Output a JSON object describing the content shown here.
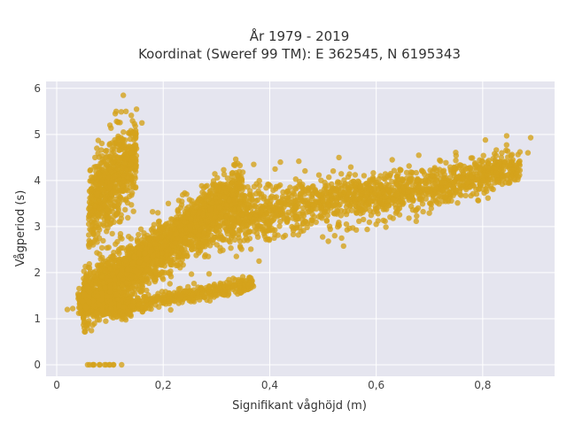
{
  "chart_data": {
    "type": "scatter",
    "title": "År 1979 - 2019",
    "subtitle": "Koordinat (Sweref 99 TM): E 362545, N 6195343",
    "xlabel": "Signifikant våghöjd (m)",
    "ylabel": "Vågperiod (s)",
    "xlim": [
      -0.02,
      0.935
    ],
    "ylim": [
      -0.25,
      6.15
    ],
    "x_ticks": [
      0,
      0.2,
      0.4,
      0.6,
      0.8
    ],
    "x_tick_labels": [
      "0",
      "0,2",
      "0,4",
      "0,6",
      "0,8"
    ],
    "y_ticks": [
      0,
      1,
      2,
      3,
      4,
      5,
      6
    ],
    "y_tick_labels": [
      "0",
      "1",
      "2",
      "3",
      "4",
      "5",
      "6"
    ],
    "grid": true,
    "colors": {
      "marker": "#d4a31c",
      "plot_bg": "#e5e5ef",
      "grid": "#ffffff"
    },
    "clusters": [
      {
        "name": "main",
        "count": 2600,
        "x_range": [
          0.05,
          0.87
        ],
        "y_at": [
          [
            0.05,
            1.45
          ],
          [
            0.15,
            2.1
          ],
          [
            0.3,
            3.1
          ],
          [
            0.5,
            3.55
          ],
          [
            0.7,
            3.85
          ],
          [
            0.87,
            4.3
          ]
        ],
        "spread": 0.35
      },
      {
        "name": "steep-upper",
        "count": 1100,
        "x_range": [
          0.08,
          0.35
        ],
        "y_at": [
          [
            0.08,
            1.6
          ],
          [
            0.35,
            3.9
          ]
        ],
        "spread": 0.25
      },
      {
        "name": "short-period",
        "count": 500,
        "x_range": [
          0.04,
          0.14
        ],
        "y_at": [
          [
            0.04,
            1.4
          ],
          [
            0.14,
            1.25
          ]
        ],
        "spread": 0.12
      },
      {
        "name": "low-band",
        "count": 450,
        "x_range": [
          0.1,
          0.37
        ],
        "y_at": [
          [
            0.1,
            1.2
          ],
          [
            0.37,
            1.75
          ]
        ],
        "spread": 0.08
      },
      {
        "name": "swell",
        "count": 700,
        "x_range": [
          0.06,
          0.15
        ],
        "y_at": [
          [
            0.06,
            3.4
          ],
          [
            0.15,
            4.6
          ]
        ],
        "spread": 0.45
      },
      {
        "name": "calm",
        "count": 8,
        "x_range": [
          0.06,
          0.12
        ],
        "y_at": [
          [
            0.06,
            0
          ],
          [
            0.12,
            0
          ]
        ],
        "spread": 0
      }
    ],
    "points": [
      {
        "x": 0.125,
        "y": 5.85
      },
      {
        "x": 0.11,
        "y": 5.45
      },
      {
        "x": 0.13,
        "y": 5.5
      },
      {
        "x": 0.16,
        "y": 5.25
      },
      {
        "x": 0.1,
        "y": 5.2
      },
      {
        "x": 0.14,
        "y": 4.6
      },
      {
        "x": 0.02,
        "y": 1.2
      },
      {
        "x": 0.03,
        "y": 1.22
      },
      {
        "x": 0.058,
        "y": 0
      },
      {
        "x": 0.07,
        "y": 0
      },
      {
        "x": 0.08,
        "y": 0
      },
      {
        "x": 0.09,
        "y": 0
      },
      {
        "x": 0.1,
        "y": 0
      },
      {
        "x": 0.122,
        "y": 0
      },
      {
        "x": 0.89,
        "y": 4.93
      },
      {
        "x": 0.885,
        "y": 4.6
      },
      {
        "x": 0.87,
        "y": 4.62
      },
      {
        "x": 0.845,
        "y": 4.97
      },
      {
        "x": 0.805,
        "y": 4.88
      },
      {
        "x": 0.835,
        "y": 4.5
      },
      {
        "x": 0.42,
        "y": 4.4
      },
      {
        "x": 0.41,
        "y": 4.25
      },
      {
        "x": 0.37,
        "y": 4.35
      },
      {
        "x": 0.53,
        "y": 4.5
      },
      {
        "x": 0.63,
        "y": 4.45
      },
      {
        "x": 0.68,
        "y": 4.55
      },
      {
        "x": 0.51,
        "y": 2.68
      },
      {
        "x": 0.535,
        "y": 2.75
      },
      {
        "x": 0.6,
        "y": 3.05
      },
      {
        "x": 0.38,
        "y": 2.25
      },
      {
        "x": 0.36,
        "y": 1.72
      },
      {
        "x": 0.325,
        "y": 1.78
      },
      {
        "x": 0.18,
        "y": 3.32
      },
      {
        "x": 0.19,
        "y": 3.3
      },
      {
        "x": 0.06,
        "y": 2.6
      },
      {
        "x": 0.08,
        "y": 2.75
      }
    ]
  }
}
